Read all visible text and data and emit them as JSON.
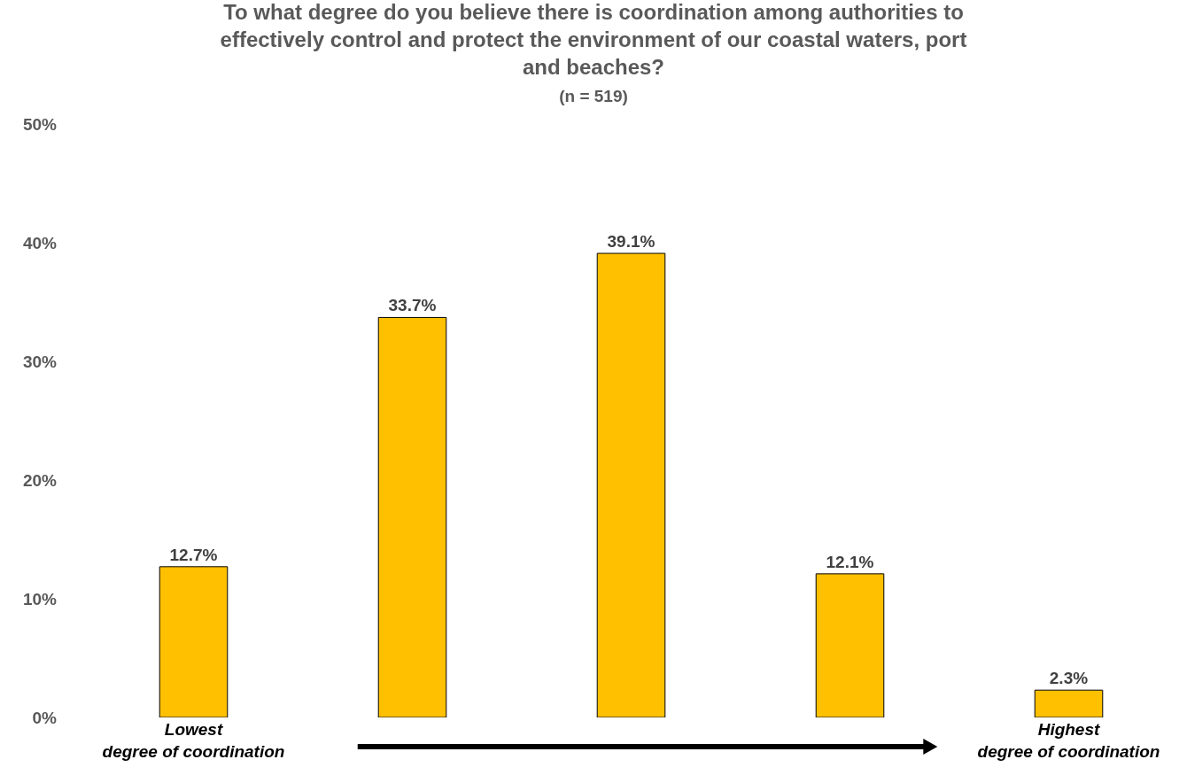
{
  "chart_data": {
    "type": "bar",
    "title": "To what degree do you believe there is coordination among authorities to effectively control and protect the environment of our coastal waters, port and beaches?",
    "subtitle": "(n = 519)",
    "categories": [
      "Lowest degree of coordination",
      null,
      null,
      null,
      "Highest degree of coordination"
    ],
    "values": [
      12.7,
      33.7,
      39.1,
      12.1,
      2.3
    ],
    "value_labels": [
      "12.7%",
      "33.7%",
      "39.1%",
      "12.1%",
      "2.3%"
    ],
    "color": "#ffc000",
    "ylim": [
      0,
      50
    ],
    "yticks": [
      {
        "value": 0,
        "label": "0%"
      },
      {
        "value": 10,
        "label": "10%"
      },
      {
        "value": 20,
        "label": "20%"
      },
      {
        "value": 30,
        "label": "30%"
      },
      {
        "value": 40,
        "label": "40%"
      },
      {
        "value": 50,
        "label": "50%"
      }
    ],
    "grid": false,
    "legend": false
  }
}
